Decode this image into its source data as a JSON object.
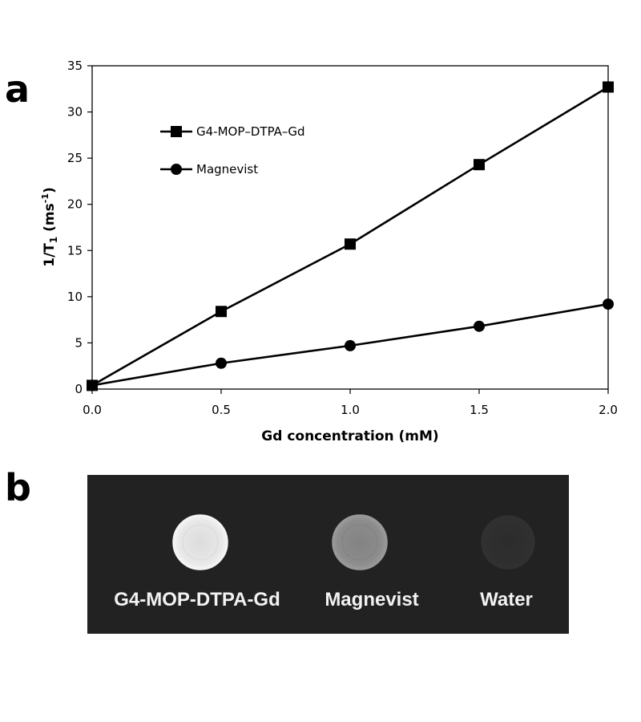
{
  "panels": {
    "a": "a",
    "b": "b"
  },
  "chart_data": {
    "type": "line",
    "xlabel": "Gd concentration (mM)",
    "ylabel": {
      "main": "1/T",
      "sub": "1",
      "paren_open": " (ms",
      "sup": "-1",
      "paren_close": ")"
    },
    "xlim": [
      0,
      2
    ],
    "ylim": [
      0,
      35
    ],
    "x_ticks": [
      "0.0",
      "0.5",
      "1.0",
      "1.5",
      "2.0"
    ],
    "y_ticks": [
      "0",
      "5",
      "10",
      "15",
      "20",
      "25",
      "30",
      "35"
    ],
    "x_tick_values": [
      0,
      0.5,
      1.0,
      1.5,
      2.0
    ],
    "y_tick_values": [
      0,
      5,
      10,
      15,
      20,
      25,
      30,
      35
    ],
    "legend_placement": "top-left",
    "grid": false,
    "series": [
      {
        "name": "G4-MOP–DTPA–Gd",
        "marker": "square",
        "color": "#000000",
        "x": [
          0,
          0.5,
          1.0,
          1.5,
          2.0
        ],
        "y": [
          0.4,
          8.4,
          15.7,
          24.3,
          32.7
        ]
      },
      {
        "name": "Magnevist",
        "marker": "circle",
        "color": "#000000",
        "x": [
          0,
          0.5,
          1.0,
          1.5,
          2.0
        ],
        "y": [
          0.4,
          2.8,
          4.7,
          6.8,
          9.2
        ]
      }
    ]
  },
  "phantom_image": {
    "background": "#222222",
    "samples": [
      {
        "label": "G4-MOP-DTPA-Gd",
        "fill": "#e6e6e6",
        "edge": "#f5f5f5",
        "brightness": "bright"
      },
      {
        "label": "Magnevist",
        "fill": "#8a8a8a",
        "edge": "#9a9a9a",
        "brightness": "medium"
      },
      {
        "label": "Water",
        "fill": "#2e2e2e",
        "edge": "#333333",
        "brightness": "dark"
      }
    ]
  }
}
